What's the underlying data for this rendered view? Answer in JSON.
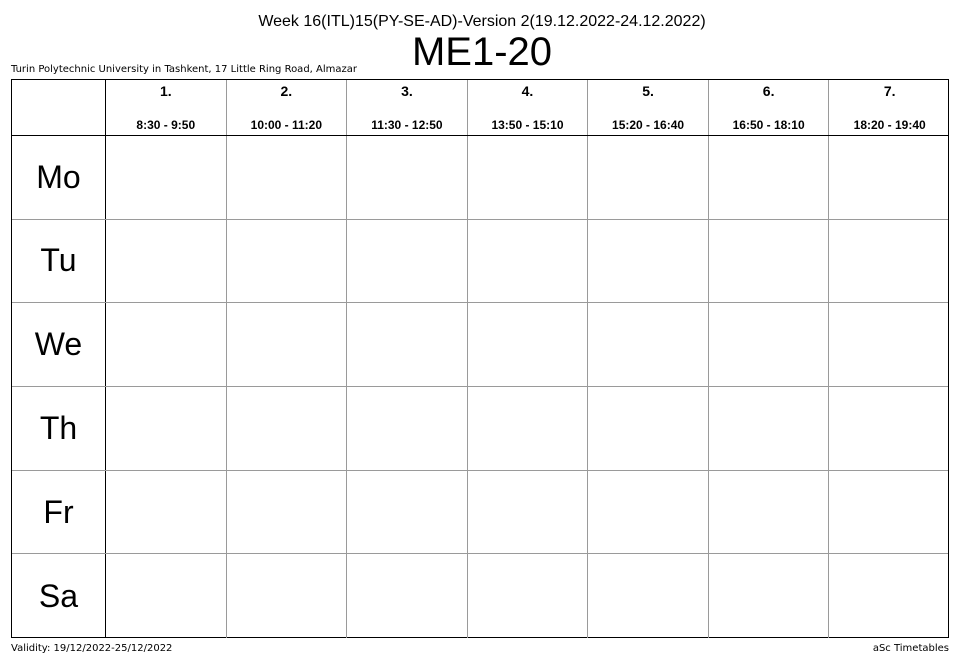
{
  "header": {
    "subtitle": "Week 16(ITL)15(PY-SE-AD)-Version 2(19.12.2022-24.12.2022)",
    "room": "ME1-20",
    "institution": "Turin Polytechnic University in Tashkent, 17 Little Ring Road, Almazar"
  },
  "periods": [
    {
      "number": "1.",
      "time": "8:30 - 9:50"
    },
    {
      "number": "2.",
      "time": "10:00 - 11:20"
    },
    {
      "number": "3.",
      "time": "11:30 - 12:50"
    },
    {
      "number": "4.",
      "time": "13:50 - 15:10"
    },
    {
      "number": "5.",
      "time": "15:20 - 16:40"
    },
    {
      "number": "6.",
      "time": "16:50 - 18:10"
    },
    {
      "number": "7.",
      "time": "18:20 - 19:40"
    }
  ],
  "days": [
    "Mo",
    "Tu",
    "We",
    "Th",
    "Fr",
    "Sa"
  ],
  "footer": {
    "validity": "Validity: 19/12/2022-25/12/2022",
    "credit": "aSc Timetables"
  }
}
